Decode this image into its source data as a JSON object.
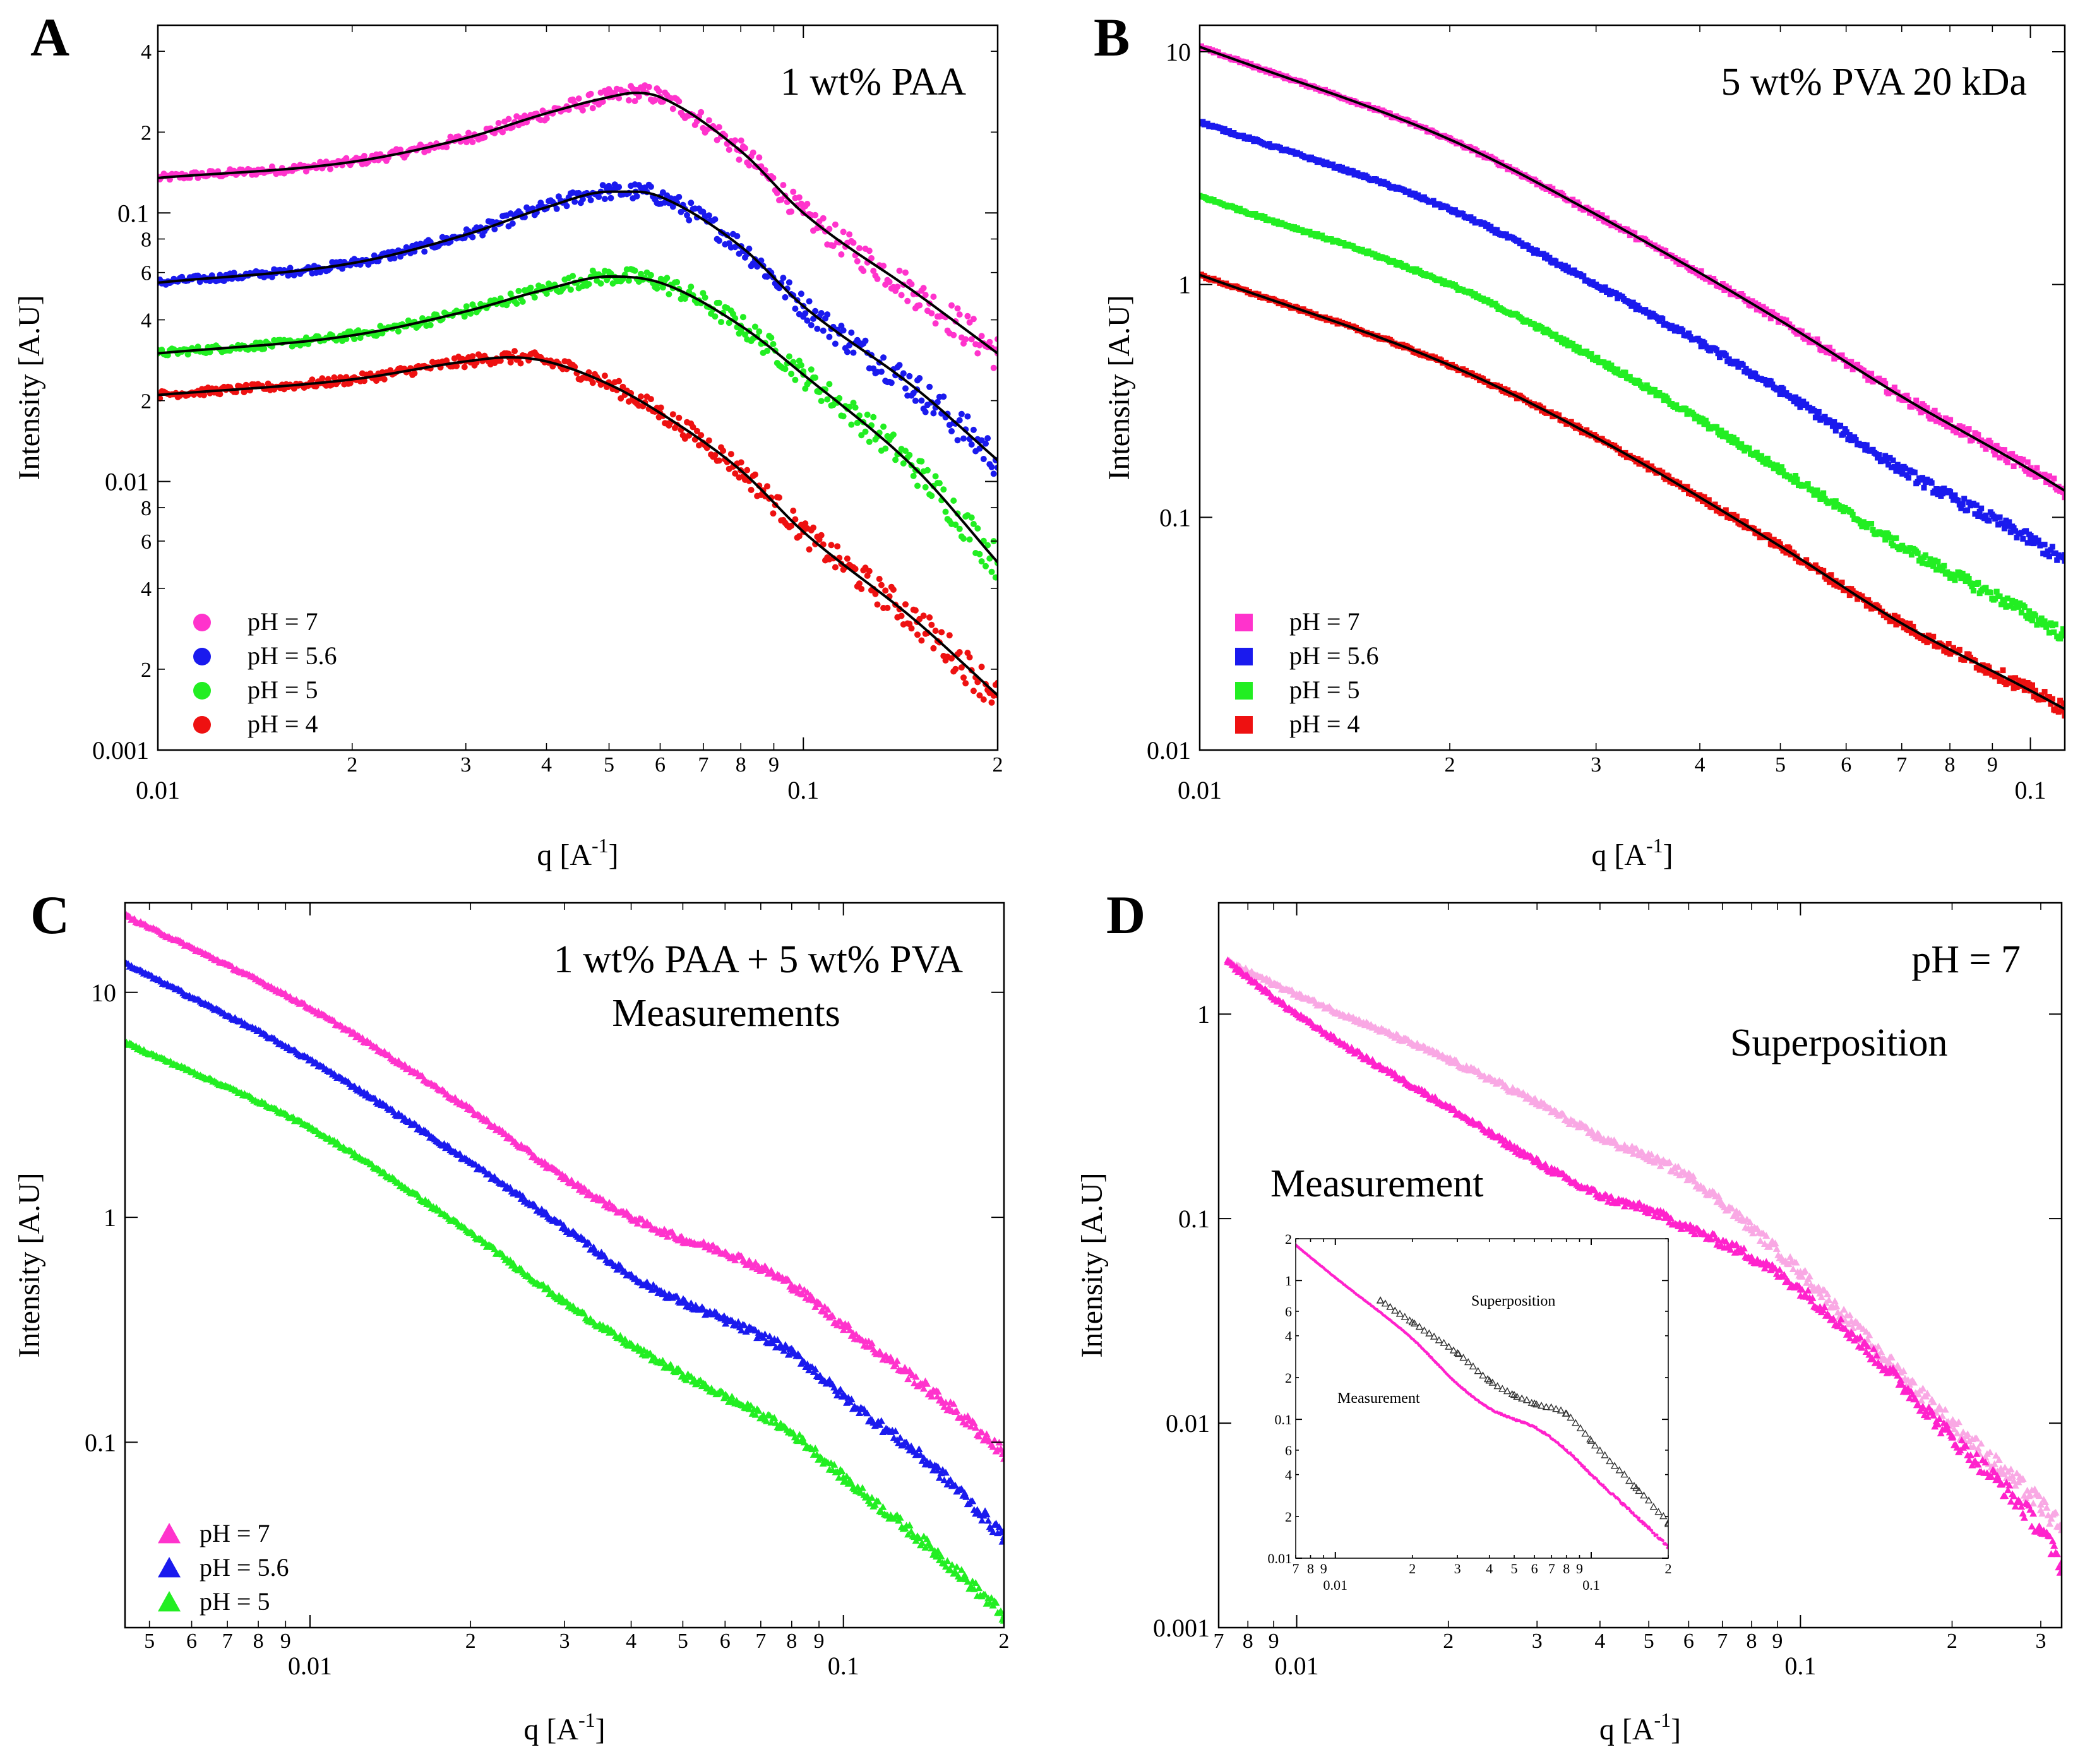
{
  "figure": {
    "panels": [
      "A",
      "B",
      "C",
      "D"
    ]
  },
  "chart_data": [
    {
      "type": "scatter",
      "panel": "A",
      "title": "1 wt% PAA",
      "xlabel": "q [A-1]",
      "ylabel": "Intensity [A.U]",
      "xscale": "log",
      "yscale": "log",
      "xlim": [
        0.01,
        0.2
      ],
      "ylim": [
        0.001,
        0.5
      ],
      "x_major_ticks": [
        {
          "v": 0.01,
          "l": "0.01"
        },
        {
          "v": 0.1,
          "l": "0.1"
        }
      ],
      "x_minor_ticks": [
        {
          "v": 0.02,
          "l": "2"
        },
        {
          "v": 0.03,
          "l": "3"
        },
        {
          "v": 0.04,
          "l": "4"
        },
        {
          "v": 0.05,
          "l": "5"
        },
        {
          "v": 0.06,
          "l": "6"
        },
        {
          "v": 0.07,
          "l": "7"
        },
        {
          "v": 0.08,
          "l": "8"
        },
        {
          "v": 0.09,
          "l": "9"
        },
        {
          "v": 0.2,
          "l": "2"
        }
      ],
      "y_major_ticks": [
        {
          "v": 0.001,
          "l": "0.001"
        },
        {
          "v": 0.01,
          "l": "0.01"
        },
        {
          "v": 0.1,
          "l": "0.1"
        }
      ],
      "y_minor_ticks": [
        {
          "v": 0.002,
          "l": "2"
        },
        {
          "v": 0.004,
          "l": "4"
        },
        {
          "v": 0.006,
          "l": "6"
        },
        {
          "v": 0.008,
          "l": "8"
        },
        {
          "v": 0.02,
          "l": "2"
        },
        {
          "v": 0.04,
          "l": "4"
        },
        {
          "v": 0.06,
          "l": "6"
        },
        {
          "v": 0.08,
          "l": "8"
        },
        {
          "v": 0.2,
          "l": "2"
        },
        {
          "v": 0.4,
          "l": "4"
        }
      ],
      "marker": "circle",
      "fit_lines": true,
      "legend": "bottom-left",
      "series": [
        {
          "name": "pH = 7",
          "color": "#ff33cc",
          "x": [
            0.01,
            0.02,
            0.03,
            0.04,
            0.05,
            0.055,
            0.06,
            0.08,
            0.1,
            0.15,
            0.2
          ],
          "y": [
            0.135,
            0.155,
            0.19,
            0.235,
            0.27,
            0.28,
            0.27,
            0.17,
            0.1,
            0.05,
            0.03
          ]
        },
        {
          "name": "pH = 5.6",
          "color": "#1a1aee",
          "x": [
            0.01,
            0.02,
            0.03,
            0.04,
            0.05,
            0.055,
            0.06,
            0.08,
            0.1,
            0.15,
            0.2
          ],
          "y": [
            0.055,
            0.065,
            0.083,
            0.105,
            0.12,
            0.12,
            0.115,
            0.075,
            0.045,
            0.022,
            0.012
          ]
        },
        {
          "name": "pH = 5",
          "color": "#22ee22",
          "x": [
            0.01,
            0.02,
            0.03,
            0.04,
            0.05,
            0.06,
            0.08,
            0.1,
            0.15,
            0.2
          ],
          "y": [
            0.03,
            0.035,
            0.043,
            0.052,
            0.058,
            0.055,
            0.038,
            0.025,
            0.011,
            0.005
          ]
        },
        {
          "name": "pH = 4",
          "color": "#ee1111",
          "x": [
            0.01,
            0.02,
            0.03,
            0.035,
            0.04,
            0.05,
            0.06,
            0.08,
            0.1,
            0.15,
            0.2
          ],
          "y": [
            0.021,
            0.024,
            0.028,
            0.029,
            0.028,
            0.023,
            0.018,
            0.011,
            0.0065,
            0.003,
            0.0016
          ]
        }
      ]
    },
    {
      "type": "scatter",
      "panel": "B",
      "title": "5 wt% PVA 20 kDa",
      "xlabel": "q [A-1]",
      "ylabel": "Intensity [A.U]",
      "xscale": "log",
      "yscale": "log",
      "xlim": [
        0.01,
        0.11
      ],
      "ylim": [
        0.01,
        13
      ],
      "x_major_ticks": [
        {
          "v": 0.01,
          "l": "0.01"
        },
        {
          "v": 0.1,
          "l": "0.1"
        }
      ],
      "x_minor_ticks": [
        {
          "v": 0.02,
          "l": "2"
        },
        {
          "v": 0.03,
          "l": "3"
        },
        {
          "v": 0.04,
          "l": "4"
        },
        {
          "v": 0.05,
          "l": "5"
        },
        {
          "v": 0.06,
          "l": "6"
        },
        {
          "v": 0.07,
          "l": "7"
        },
        {
          "v": 0.08,
          "l": "8"
        },
        {
          "v": 0.09,
          "l": "9"
        }
      ],
      "y_major_ticks": [
        {
          "v": 0.01,
          "l": "0.01"
        },
        {
          "v": 0.1,
          "l": "0.1"
        },
        {
          "v": 1,
          "l": "1"
        },
        {
          "v": 10,
          "l": "10"
        }
      ],
      "y_minor_ticks": [],
      "marker": "square",
      "fit_lines": true,
      "fit_series": [
        0,
        3
      ],
      "legend": "bottom-left",
      "series": [
        {
          "name": "pH = 7",
          "color": "#ff33cc",
          "x": [
            0.01,
            0.02,
            0.03,
            0.05,
            0.07,
            0.1,
            0.11
          ],
          "y": [
            10.5,
            4.2,
            2.0,
            0.7,
            0.33,
            0.16,
            0.13
          ]
        },
        {
          "name": "pH = 5.6",
          "color": "#1a1aee",
          "x": [
            0.01,
            0.02,
            0.03,
            0.05,
            0.07,
            0.1,
            0.11
          ],
          "y": [
            5.0,
            2.1,
            1.0,
            0.35,
            0.16,
            0.08,
            0.065
          ]
        },
        {
          "name": "pH = 5",
          "color": "#22ee22",
          "x": [
            0.01,
            0.02,
            0.03,
            0.05,
            0.07,
            0.1,
            0.11
          ],
          "y": [
            2.4,
            1.0,
            0.48,
            0.16,
            0.075,
            0.038,
            0.031
          ]
        },
        {
          "name": "pH = 4",
          "color": "#ee1111",
          "x": [
            0.01,
            0.02,
            0.03,
            0.05,
            0.07,
            0.1,
            0.11
          ],
          "y": [
            1.1,
            0.45,
            0.22,
            0.075,
            0.035,
            0.018,
            0.015
          ]
        }
      ]
    },
    {
      "type": "scatter",
      "panel": "C",
      "title": "1 wt% PAA + 5 wt% PVA",
      "subtitle": "Measurements",
      "xlabel": "q [A-1]",
      "ylabel": "Intensity [A.U]",
      "xscale": "log",
      "yscale": "log",
      "xlim": [
        0.0045,
        0.2
      ],
      "ylim": [
        0.015,
        25
      ],
      "x_major_ticks": [
        {
          "v": 0.01,
          "l": "0.01"
        },
        {
          "v": 0.1,
          "l": "0.1"
        }
      ],
      "x_minor_ticks": [
        {
          "v": 0.005,
          "l": "5"
        },
        {
          "v": 0.006,
          "l": "6"
        },
        {
          "v": 0.007,
          "l": "7"
        },
        {
          "v": 0.008,
          "l": "8"
        },
        {
          "v": 0.009,
          "l": "9"
        },
        {
          "v": 0.02,
          "l": "2"
        },
        {
          "v": 0.03,
          "l": "3"
        },
        {
          "v": 0.04,
          "l": "4"
        },
        {
          "v": 0.05,
          "l": "5"
        },
        {
          "v": 0.06,
          "l": "6"
        },
        {
          "v": 0.07,
          "l": "7"
        },
        {
          "v": 0.08,
          "l": "8"
        },
        {
          "v": 0.09,
          "l": "9"
        },
        {
          "v": 0.2,
          "l": "2"
        }
      ],
      "y_major_ticks": [
        {
          "v": 0.1,
          "l": "0.1"
        },
        {
          "v": 1,
          "l": "1"
        },
        {
          "v": 10,
          "l": "10"
        }
      ],
      "y_minor_ticks": [],
      "marker": "triangle",
      "fit_lines": false,
      "legend": "bottom-left",
      "series": [
        {
          "name": "pH = 7",
          "color": "#ff33cc",
          "x": [
            0.0045,
            0.01,
            0.02,
            0.03,
            0.04,
            0.05,
            0.06,
            0.08,
            0.1,
            0.15,
            0.2
          ],
          "y": [
            22,
            8.5,
            3.0,
            1.5,
            1.0,
            0.8,
            0.7,
            0.5,
            0.33,
            0.16,
            0.09
          ]
        },
        {
          "name": "pH = 5.6",
          "color": "#1a1aee",
          "x": [
            0.0045,
            0.01,
            0.02,
            0.03,
            0.04,
            0.05,
            0.06,
            0.08,
            0.1,
            0.15,
            0.2
          ],
          "y": [
            13.5,
            5.0,
            1.75,
            0.9,
            0.55,
            0.42,
            0.35,
            0.25,
            0.16,
            0.075,
            0.038
          ]
        },
        {
          "name": "pH = 5",
          "color": "#22ee22",
          "x": [
            0.0045,
            0.01,
            0.02,
            0.03,
            0.04,
            0.05,
            0.06,
            0.08,
            0.1,
            0.15,
            0.2
          ],
          "y": [
            6.0,
            2.5,
            0.85,
            0.42,
            0.27,
            0.2,
            0.16,
            0.11,
            0.07,
            0.032,
            0.017
          ]
        }
      ]
    },
    {
      "type": "scatter",
      "panel": "D",
      "title": "pH = 7",
      "xlabel": "q [A-1]",
      "ylabel": "Intensity [A.U]",
      "xscale": "log",
      "yscale": "log",
      "xlim": [
        0.007,
        0.33
      ],
      "ylim": [
        0.001,
        3.5
      ],
      "x_major_ticks": [
        {
          "v": 0.01,
          "l": "0.01"
        },
        {
          "v": 0.1,
          "l": "0.1"
        }
      ],
      "x_minor_ticks": [
        {
          "v": 0.007,
          "l": "7"
        },
        {
          "v": 0.008,
          "l": "8"
        },
        {
          "v": 0.009,
          "l": "9"
        },
        {
          "v": 0.02,
          "l": "2"
        },
        {
          "v": 0.03,
          "l": "3"
        },
        {
          "v": 0.04,
          "l": "4"
        },
        {
          "v": 0.05,
          "l": "5"
        },
        {
          "v": 0.06,
          "l": "6"
        },
        {
          "v": 0.07,
          "l": "7"
        },
        {
          "v": 0.08,
          "l": "8"
        },
        {
          "v": 0.09,
          "l": "9"
        },
        {
          "v": 0.2,
          "l": "2"
        },
        {
          "v": 0.3,
          "l": "3"
        }
      ],
      "y_major_ticks": [
        {
          "v": 0.001,
          "l": "0.001"
        },
        {
          "v": 0.01,
          "l": "0.01"
        },
        {
          "v": 0.1,
          "l": "0.1"
        },
        {
          "v": 1,
          "l": "1"
        }
      ],
      "y_minor_ticks": [],
      "marker": "triangle",
      "fit_lines": false,
      "annotations": [
        "Superposition",
        "Measurement"
      ],
      "series": [
        {
          "name": "Superposition",
          "color": "#f9a8e4",
          "x": [
            0.0073,
            0.01,
            0.02,
            0.03,
            0.04,
            0.05,
            0.06,
            0.08,
            0.1,
            0.15,
            0.2,
            0.25,
            0.3,
            0.33
          ],
          "y": [
            1.8,
            1.25,
            0.6,
            0.37,
            0.25,
            0.2,
            0.16,
            0.09,
            0.055,
            0.02,
            0.01,
            0.006,
            0.004,
            0.003
          ]
        },
        {
          "name": "Measurement",
          "color": "#ff22cc",
          "x": [
            0.0073,
            0.01,
            0.02,
            0.03,
            0.04,
            0.05,
            0.06,
            0.08,
            0.1,
            0.15,
            0.2,
            0.25,
            0.3,
            0.33
          ],
          "y": [
            1.8,
            1.0,
            0.35,
            0.19,
            0.13,
            0.11,
            0.09,
            0.065,
            0.045,
            0.018,
            0.0085,
            0.005,
            0.003,
            0.002
          ]
        }
      ],
      "inset": {
        "type": "scatter",
        "xscale": "log",
        "yscale": "log",
        "xlim": [
          0.007,
          0.2
        ],
        "ylim": [
          0.01,
          2
        ],
        "x_major_ticks": [
          {
            "v": 0.01,
            "l": "0.01"
          },
          {
            "v": 0.1,
            "l": "0.1"
          }
        ],
        "x_minor_ticks": [
          {
            "v": 0.007,
            "l": "7"
          },
          {
            "v": 0.008,
            "l": "8"
          },
          {
            "v": 0.009,
            "l": "9"
          },
          {
            "v": 0.02,
            "l": "2"
          },
          {
            "v": 0.03,
            "l": "3"
          },
          {
            "v": 0.04,
            "l": "4"
          },
          {
            "v": 0.05,
            "l": "5"
          },
          {
            "v": 0.06,
            "l": "6"
          },
          {
            "v": 0.07,
            "l": "7"
          },
          {
            "v": 0.08,
            "l": "8"
          },
          {
            "v": 0.09,
            "l": "9"
          },
          {
            "v": 0.2,
            "l": "2"
          }
        ],
        "y_major_ticks": [
          {
            "v": 0.01,
            "l": "0.01"
          },
          {
            "v": 0.1,
            "l": "0.1"
          },
          {
            "v": 1,
            "l": "1"
          }
        ],
        "y_minor_ticks": [
          {
            "v": 0.02,
            "l": "2"
          },
          {
            "v": 0.04,
            "l": "4"
          },
          {
            "v": 0.06,
            "l": "6"
          },
          {
            "v": 0.2,
            "l": "2"
          },
          {
            "v": 0.4,
            "l": "4"
          },
          {
            "v": 0.6,
            "l": "6"
          },
          {
            "v": 2,
            "l": "2"
          }
        ],
        "annotations": [
          "Superposition",
          "Measurement"
        ],
        "series": [
          {
            "name": "Superposition",
            "color": "#333333",
            "marker": "open-triangle",
            "x": [
              0.015,
              0.02,
              0.03,
              0.04,
              0.05,
              0.06,
              0.08,
              0.1,
              0.15,
              0.2
            ],
            "y": [
              0.72,
              0.5,
              0.3,
              0.19,
              0.15,
              0.13,
              0.11,
              0.07,
              0.032,
              0.018
            ]
          },
          {
            "name": "Measurement",
            "color": "#ff22cc",
            "marker": "line",
            "x": [
              0.007,
              0.01,
              0.02,
              0.03,
              0.04,
              0.05,
              0.06,
              0.08,
              0.1,
              0.15,
              0.2
            ],
            "y": [
              1.8,
              1.05,
              0.38,
              0.18,
              0.12,
              0.1,
              0.088,
              0.06,
              0.04,
              0.02,
              0.012
            ]
          }
        ]
      }
    }
  ]
}
